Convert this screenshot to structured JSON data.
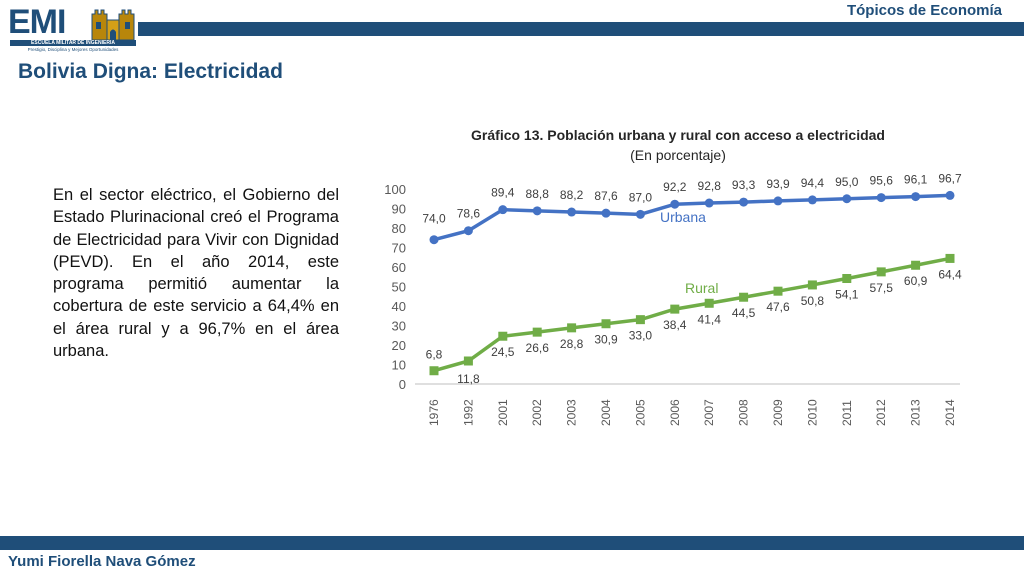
{
  "header": {
    "section": "Tópicos de Economía",
    "logo": {
      "text": "EMI",
      "line1": "ESCUELA MILITAR DE INGENIERIA",
      "line2": "Prestigio, Disciplina y Mejores Oportunidades",
      "icon": "castle-icon"
    }
  },
  "slide": {
    "title": "Bolivia Digna: Electricidad",
    "body": "En el sector eléctrico, el Gobierno del Estado Plurinacional creó el Programa de Electricidad para Vivir con Dignidad (PEVD). En el año 2014, este programa permitió aumentar la cobertura de este servicio a 64,4% en el área rural y a 96,7% en el área urbana."
  },
  "footer": {
    "author": "Yumi Fiorella Nava Gómez"
  },
  "colors": {
    "brand": "#1f4e79",
    "urbana": "#4472c4",
    "rural": "#70ad47"
  },
  "chart_data": {
    "type": "line",
    "title": "Gráfico 13. Población urbana y rural con acceso a electricidad",
    "subtitle": "(En porcentaje)",
    "categories": [
      "1976",
      "1992",
      "2001",
      "2002",
      "2003",
      "2004",
      "2005",
      "2006",
      "2007",
      "2008",
      "2009",
      "2010",
      "2011",
      "2012",
      "2013",
      "2014"
    ],
    "yticks": [
      "0",
      "10",
      "20",
      "30",
      "40",
      "50",
      "60",
      "70",
      "80",
      "90",
      "100"
    ],
    "ylim": [
      0,
      100
    ],
    "grid": false,
    "legend": "inline labels",
    "series": [
      {
        "name": "Urbana",
        "values": [
          74.0,
          78.6,
          89.4,
          88.8,
          88.2,
          87.6,
          87.0,
          92.2,
          92.8,
          93.3,
          93.9,
          94.4,
          95.0,
          95.6,
          96.1,
          96.7
        ],
        "labels": [
          "74,0",
          "78,6",
          "89,4",
          "88,8",
          "88,2",
          "87,6",
          "87,0",
          "92,2",
          "92,8",
          "93,3",
          "93,9",
          "94,4",
          "95,0",
          "95,6",
          "96,1",
          "96,7"
        ]
      },
      {
        "name": "Rural",
        "values": [
          6.8,
          11.8,
          24.5,
          26.6,
          28.8,
          30.9,
          33.0,
          38.4,
          41.4,
          44.5,
          47.6,
          50.8,
          54.1,
          57.5,
          60.9,
          64.4
        ],
        "labels": [
          "6,8",
          "11,8",
          "24,5",
          "26,6",
          "28,8",
          "30,9",
          "33,0",
          "38,4",
          "41,4",
          "44,5",
          "47,6",
          "50,8",
          "54,1",
          "57,5",
          "60,9",
          "64,4"
        ]
      }
    ]
  }
}
